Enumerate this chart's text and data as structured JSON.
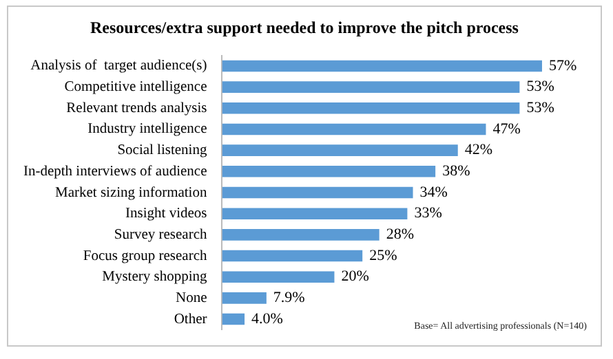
{
  "chart_data": {
    "type": "bar",
    "orientation": "horizontal",
    "title": "Resources/extra support needed to improve the pitch process",
    "categories": [
      "Analysis of  target audience(s)",
      "Competitive intelligence",
      "Relevant trends analysis",
      "Industry intelligence",
      "Social listening",
      "In-depth interviews of audience",
      "Market sizing information",
      "Insight videos",
      "Survey research",
      "Focus group research",
      "Mystery shopping",
      "None",
      "Other"
    ],
    "values": [
      57,
      53,
      53,
      47,
      42,
      38,
      34,
      33,
      28,
      25,
      20,
      7.9,
      4.0
    ],
    "value_labels": [
      "57%",
      "53%",
      "53%",
      "47%",
      "42%",
      "38%",
      "34%",
      "33%",
      "28%",
      "25%",
      "20%",
      "7.9%",
      "4.0%"
    ],
    "color": "#5b9bd5",
    "annotations": [
      "Base= All advertising professionals (N=140)"
    ],
    "legend": false
  }
}
